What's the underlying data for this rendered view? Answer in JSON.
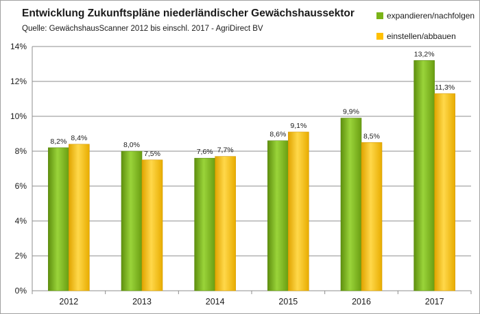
{
  "chart_data": {
    "type": "bar",
    "title": "Entwicklung Zukunftspläne niederländischer Gewächshaussektor",
    "subtitle": "Quelle: GewächshausScanner 2012 bis einschl. 2017 - AgriDirect BV",
    "categories": [
      "2012",
      "2013",
      "2014",
      "2015",
      "2016",
      "2017"
    ],
    "series": [
      {
        "name": "expandieren/nachfolgen",
        "color": "#7ab317",
        "values": [
          8.2,
          8.0,
          7.6,
          8.6,
          9.9,
          13.2
        ],
        "labels": [
          "8,2%",
          "8,0%",
          "7,6%",
          "8,6%",
          "9,9%",
          "13,2%"
        ]
      },
      {
        "name": "einstellen/abbauen",
        "color": "#ffc000",
        "values": [
          8.4,
          7.5,
          7.7,
          9.1,
          8.5,
          11.3
        ],
        "labels": [
          "8,4%",
          "7,5%",
          "7,7%",
          "9,1%",
          "8,5%",
          "11,3%"
        ]
      }
    ],
    "ylim": [
      0,
      14
    ],
    "yticks": [
      0,
      2,
      4,
      6,
      8,
      10,
      12,
      14
    ],
    "ytick_labels": [
      "0%",
      "2%",
      "4%",
      "6%",
      "8%",
      "10%",
      "12%",
      "14%"
    ],
    "grid": true,
    "legend": "top-right"
  }
}
